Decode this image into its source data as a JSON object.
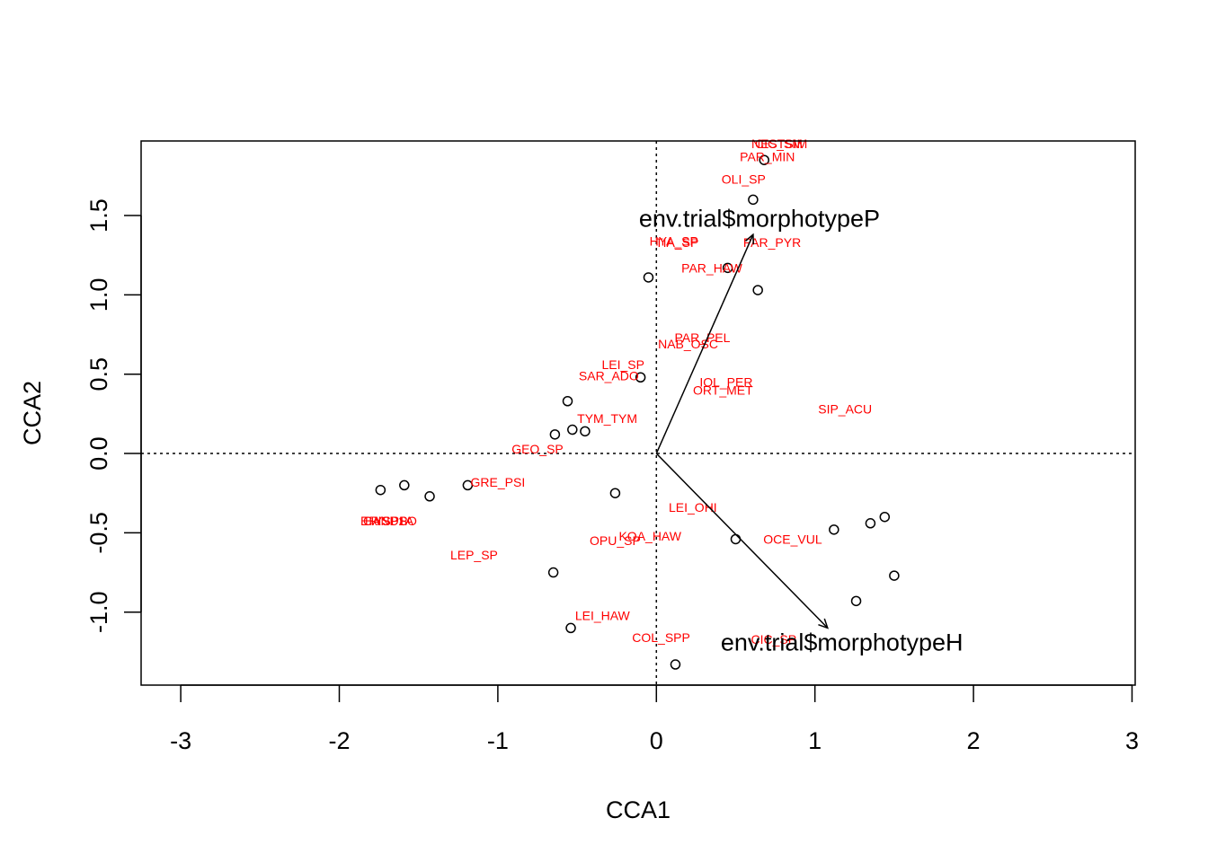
{
  "chart_data": {
    "type": "scatter",
    "title": "",
    "xlabel": "CCA1",
    "ylabel": "CCA2",
    "xlim": [
      -3.25,
      3.02
    ],
    "ylim": [
      -1.46,
      1.97
    ],
    "x_ticks": [
      {
        "value": -3,
        "label": "-3"
      },
      {
        "value": -2,
        "label": "-2"
      },
      {
        "value": -1,
        "label": "-1"
      },
      {
        "value": 0,
        "label": "0"
      },
      {
        "value": 1,
        "label": "1"
      },
      {
        "value": 2,
        "label": "2"
      },
      {
        "value": 3,
        "label": "3"
      }
    ],
    "y_ticks": [
      {
        "value": -1.0,
        "label": "-1.0"
      },
      {
        "value": -0.5,
        "label": "-0.5"
      },
      {
        "value": 0.0,
        "label": "0.0"
      },
      {
        "value": 0.5,
        "label": "0.5"
      },
      {
        "value": 1.0,
        "label": "1.0"
      },
      {
        "value": 1.5,
        "label": "1.5"
      }
    ],
    "reference_lines": {
      "x": 0,
      "y": 0,
      "style": "dotted"
    },
    "site_points": [
      {
        "x": 0.68,
        "y": 1.85
      },
      {
        "x": 0.61,
        "y": 1.6
      },
      {
        "x": -0.05,
        "y": 1.11
      },
      {
        "x": 0.45,
        "y": 1.17
      },
      {
        "x": 0.64,
        "y": 1.03
      },
      {
        "x": -0.1,
        "y": 0.48
      },
      {
        "x": -0.56,
        "y": 0.33
      },
      {
        "x": -0.53,
        "y": 0.15
      },
      {
        "x": -0.45,
        "y": 0.14
      },
      {
        "x": -0.64,
        "y": 0.12
      },
      {
        "x": -1.74,
        "y": -0.23
      },
      {
        "x": -1.59,
        "y": -0.2
      },
      {
        "x": -1.43,
        "y": -0.27
      },
      {
        "x": -1.19,
        "y": -0.2
      },
      {
        "x": -0.26,
        "y": -0.25
      },
      {
        "x": 0.5,
        "y": -0.54
      },
      {
        "x": 1.12,
        "y": -0.48
      },
      {
        "x": 1.35,
        "y": -0.44
      },
      {
        "x": 1.44,
        "y": -0.4
      },
      {
        "x": 1.5,
        "y": -0.77
      },
      {
        "x": 1.26,
        "y": -0.93
      },
      {
        "x": -0.65,
        "y": -0.75
      },
      {
        "x": -0.54,
        "y": -1.1
      },
      {
        "x": 0.12,
        "y": -1.33
      }
    ],
    "species_labels": [
      {
        "label": "OLI_SP",
        "x": 0.55,
        "y": 1.73
      },
      {
        "label": "PAR_MIN",
        "x": 0.7,
        "y": 1.87
      },
      {
        "label": "HYA_SP",
        "x": 0.11,
        "y": 1.34
      },
      {
        "label": "TIA_SP",
        "x": 0.13,
        "y": 1.33
      },
      {
        "label": "PAR_PYR",
        "x": 0.73,
        "y": 1.33
      },
      {
        "label": "PAR_HAW",
        "x": 0.35,
        "y": 1.17
      },
      {
        "label": "PAR_PEL",
        "x": 0.29,
        "y": 0.73
      },
      {
        "label": "NAB_OSC",
        "x": 0.2,
        "y": 0.69
      },
      {
        "label": "LEI_SP",
        "x": -0.21,
        "y": 0.56
      },
      {
        "label": "SAR_ADO",
        "x": -0.3,
        "y": 0.49
      },
      {
        "label": "IOL_PER",
        "x": 0.44,
        "y": 0.45
      },
      {
        "label": "ORT_MET",
        "x": 0.42,
        "y": 0.4
      },
      {
        "label": "SIP_ACU",
        "x": 1.19,
        "y": 0.28
      },
      {
        "label": "TYM_TYM",
        "x": -0.31,
        "y": 0.22
      },
      {
        "label": "GEO_SP",
        "x": -0.75,
        "y": 0.03
      },
      {
        "label": "GRE_PSI",
        "x": -1.0,
        "y": -0.18
      },
      {
        "label": "LEI_OHI",
        "x": 0.23,
        "y": -0.34
      },
      {
        "label": "KOA_HAW",
        "x": -0.04,
        "y": -0.52
      },
      {
        "label": "OPU_SP",
        "x": -0.26,
        "y": -0.55
      },
      {
        "label": "OCE_VUL",
        "x": 0.86,
        "y": -0.54
      },
      {
        "label": "LEP_SP",
        "x": -1.15,
        "y": -0.64
      },
      {
        "label": "LEI_HAW",
        "x": -0.34,
        "y": -1.02
      },
      {
        "label": "COL_SPP",
        "x": 0.03,
        "y": -1.16
      },
      {
        "label": "CIC_SP",
        "x": 0.74,
        "y": -1.17
      }
    ],
    "biplot_arrows": [
      {
        "name": "env.trial$morphotypeP",
        "x": 0.61,
        "y": 1.38,
        "label_x": 0.65,
        "label_y": 1.48
      },
      {
        "name": "env.trial$morphotypeH",
        "x": 1.08,
        "y": -1.1,
        "label_x": 1.17,
        "label_y": -1.19
      }
    ]
  }
}
